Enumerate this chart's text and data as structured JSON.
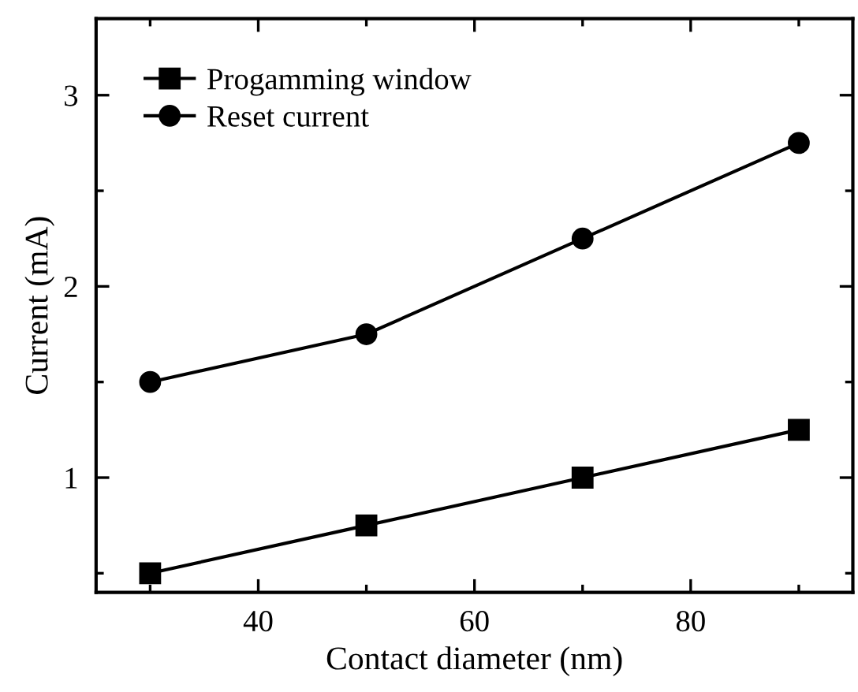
{
  "chart_data": {
    "type": "line",
    "xlabel": "Contact diameter (nm)",
    "ylabel": "Current (mA)",
    "x": [
      30,
      50,
      70,
      90
    ],
    "series": [
      {
        "name": "Progamming window",
        "color": "#000000",
        "marker": "square",
        "values": [
          0.5,
          0.75,
          1.0,
          1.25
        ]
      },
      {
        "name": "Reset current",
        "color": "#000000",
        "marker": "circle",
        "values": [
          1.5,
          1.75,
          2.25,
          2.75
        ]
      }
    ],
    "xlim": [
      25,
      95
    ],
    "ylim": [
      0.4,
      3.4
    ],
    "xticks": [
      {
        "value": 30,
        "label": null
      },
      40,
      {
        "value": 50,
        "label": null
      },
      60,
      {
        "value": 70,
        "label": null
      },
      80,
      {
        "value": 90,
        "label": null
      }
    ],
    "yticks": [
      {
        "value": 0.5,
        "label": null
      },
      1,
      {
        "value": 1.5,
        "label": null
      },
      2,
      {
        "value": 2.5,
        "label": null
      },
      3
    ],
    "grid": false,
    "legend": "top left",
    "line_style": "solid"
  }
}
